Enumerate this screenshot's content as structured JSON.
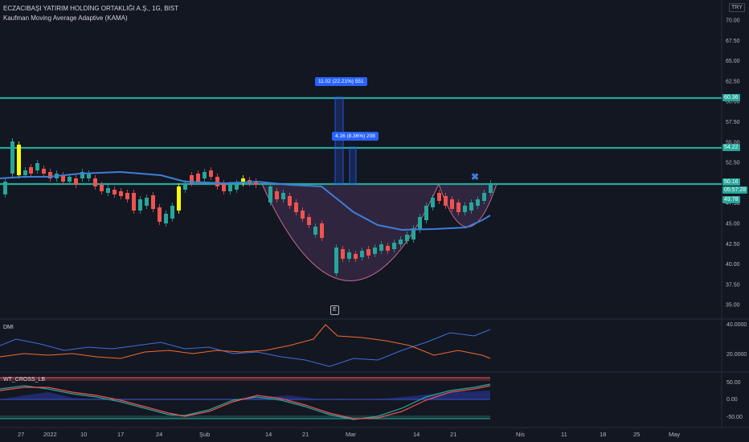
{
  "header": {
    "title": "ECZACIBAŞI YATIRIM HOLDİNG ORTAKLIĞI A.Ş., 1G, BIST",
    "indicator": "Kaufman Moving Average Adaptive (KAMA)",
    "currency": "TRY"
  },
  "price_axis": {
    "ticks": [
      "70.00",
      "67.50",
      "65.00",
      "62.50",
      "60.00",
      "57.50",
      "55.00",
      "52.50",
      "50.00",
      "47.50",
      "45.00",
      "42.50",
      "40.00",
      "37.50",
      "35.00"
    ],
    "badges": [
      {
        "label": "60.36",
        "color": "#26a69a"
      },
      {
        "label": "54.22",
        "color": "#26a69a"
      },
      {
        "label": "50.16",
        "color": "#26a69a"
      },
      {
        "label": "05:57:28",
        "color": "#26a69a"
      },
      {
        "label": "49.78",
        "color": "#26a69a"
      }
    ]
  },
  "measurements": [
    {
      "label": "11.02 (22.21%) 551"
    },
    {
      "label": "4.16 (8.36%) 208"
    }
  ],
  "earnings_marker": "E",
  "dmi": {
    "label": "DMI",
    "ticks": [
      "40.0000",
      "20.0000"
    ]
  },
  "wt": {
    "label": "WT_CROSS_LB",
    "ticks": [
      "50.00",
      "0.00",
      "-50.00"
    ]
  },
  "time_axis": {
    "labels": [
      "27",
      "2022",
      "10",
      "17",
      "24",
      "Şub",
      "14",
      "21",
      "Mar",
      "14",
      "21",
      "Nis",
      "11",
      "18",
      "25",
      "May"
    ]
  },
  "colors": {
    "background": "#131722",
    "up": "#26a69a",
    "down": "#ef5350",
    "kama": "#3d7fd9",
    "hline": "#26a69a",
    "cup": "#7b4a8a"
  }
}
